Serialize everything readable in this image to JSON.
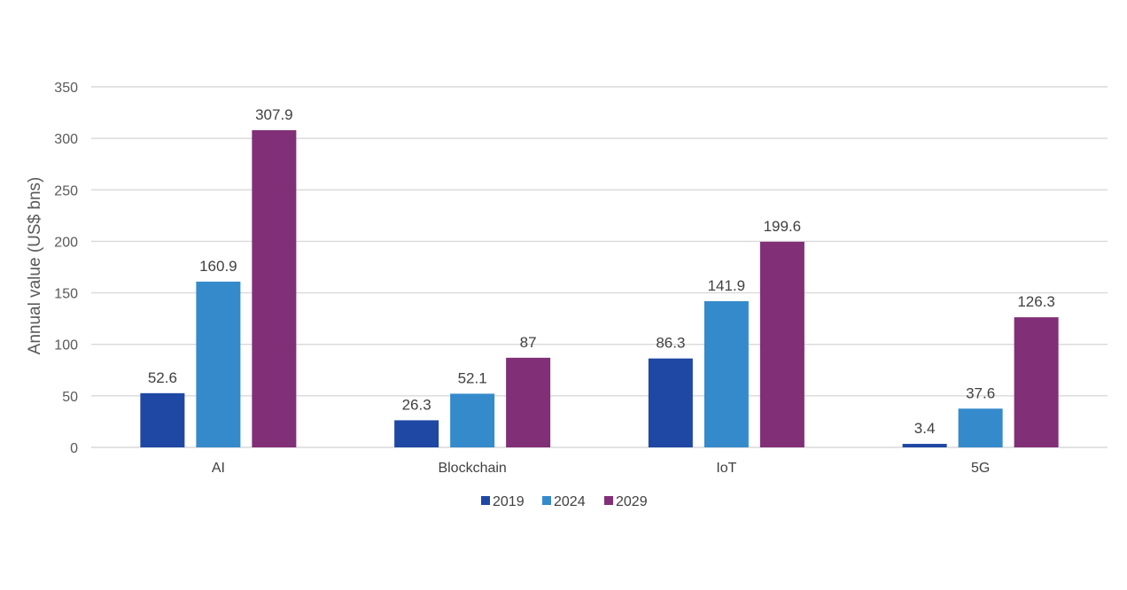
{
  "chart_data": {
    "type": "bar",
    "title": "",
    "xlabel": "",
    "ylabel": "Annual value (US$ bns)",
    "ylim": [
      0,
      350
    ],
    "yticks": [
      0,
      50,
      100,
      150,
      200,
      250,
      300,
      350
    ],
    "grid": true,
    "legend_position": "bottom-center",
    "categories": [
      "AI",
      "Blockchain",
      "IoT",
      "5G"
    ],
    "series": [
      {
        "name": "2019",
        "color": "#1f47a4",
        "values": [
          52.6,
          26.3,
          86.3,
          3.4
        ],
        "labels": [
          "52.6",
          "26.3",
          "86.3",
          "3.4"
        ]
      },
      {
        "name": "2024",
        "color": "#358acb",
        "values": [
          160.9,
          52.1,
          141.9,
          37.6
        ],
        "labels": [
          "160.9",
          "52.1",
          "141.9",
          "37.6"
        ]
      },
      {
        "name": "2029",
        "color": "#812f77",
        "values": [
          307.9,
          87,
          199.6,
          126.3
        ],
        "labels": [
          "307.9",
          "87",
          "199.6",
          "126.3"
        ]
      }
    ]
  }
}
